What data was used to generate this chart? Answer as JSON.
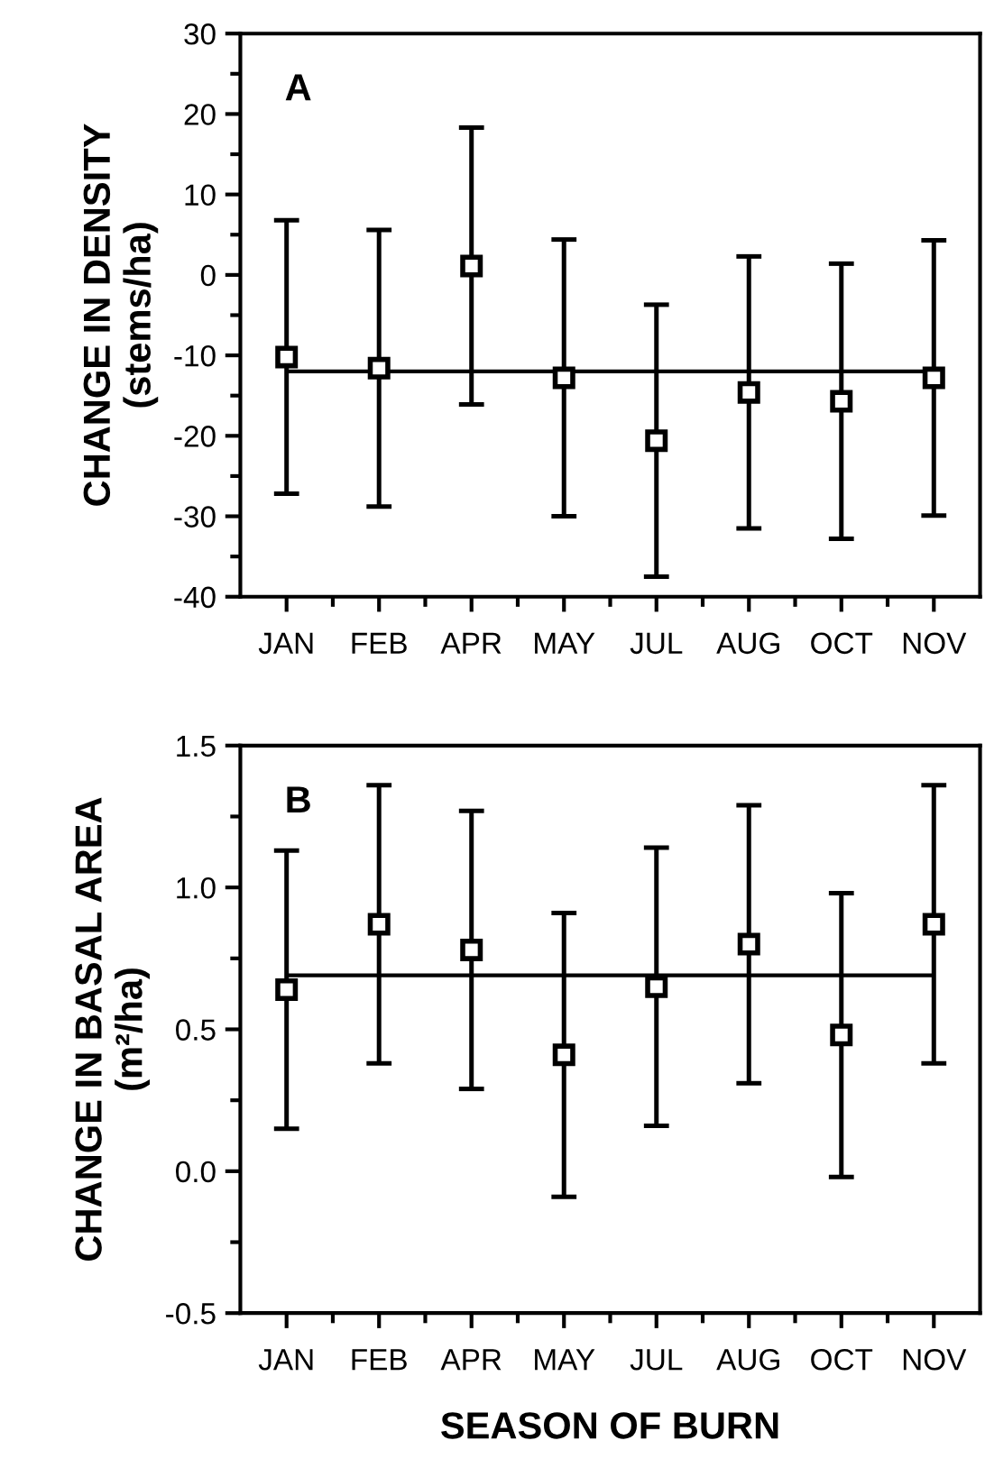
{
  "chart_data": [
    {
      "type": "scatter",
      "ylabel": "CHANGE IN DENSITY\n(stems/ha)",
      "annotations": [
        "A"
      ],
      "categories": [
        "JAN",
        "FEB",
        "APR",
        "MAY",
        "JUL",
        "AUG",
        "OCT",
        "NOV"
      ],
      "values": [
        -10.2,
        -11.6,
        1.1,
        -12.8,
        -20.6,
        -14.6,
        -15.7,
        -12.8
      ],
      "errors": [
        17,
        17.2,
        17.2,
        17.2,
        16.9,
        16.9,
        17.1,
        17.1
      ],
      "color": "#000000",
      "marker": "square",
      "ref_lines": [
        {
          "axis": "y",
          "value": -12,
          "color": "#000000"
        }
      ],
      "ylim": [
        -40,
        30
      ],
      "yticks": [
        -40,
        -30,
        -20,
        -10,
        0,
        10,
        20,
        30
      ],
      "grid": false,
      "legend": false
    },
    {
      "type": "scatter",
      "ylabel": "CHANGE IN BASAL AREA\n(m²/ha)",
      "xlabel": "SEASON OF BURN",
      "annotations": [
        "B"
      ],
      "categories": [
        "JAN",
        "FEB",
        "APR",
        "MAY",
        "JUL",
        "AUG",
        "OCT",
        "NOV"
      ],
      "values": [
        0.64,
        0.87,
        0.78,
        0.41,
        0.65,
        0.8,
        0.48,
        0.87
      ],
      "errors": [
        0.49,
        0.49,
        0.49,
        0.5,
        0.49,
        0.49,
        0.5,
        0.49
      ],
      "color": "#000000",
      "marker": "square",
      "ref_lines": [
        {
          "axis": "y",
          "value": 0.69,
          "color": "#000000"
        }
      ],
      "ylim": [
        -0.5,
        1.5
      ],
      "yticks": [
        -0.5,
        {
          "value": 0,
          "label": "0.0"
        },
        0.5,
        {
          "value": 1,
          "label": "1.0"
        },
        1.5
      ],
      "grid": false,
      "legend": false
    }
  ]
}
